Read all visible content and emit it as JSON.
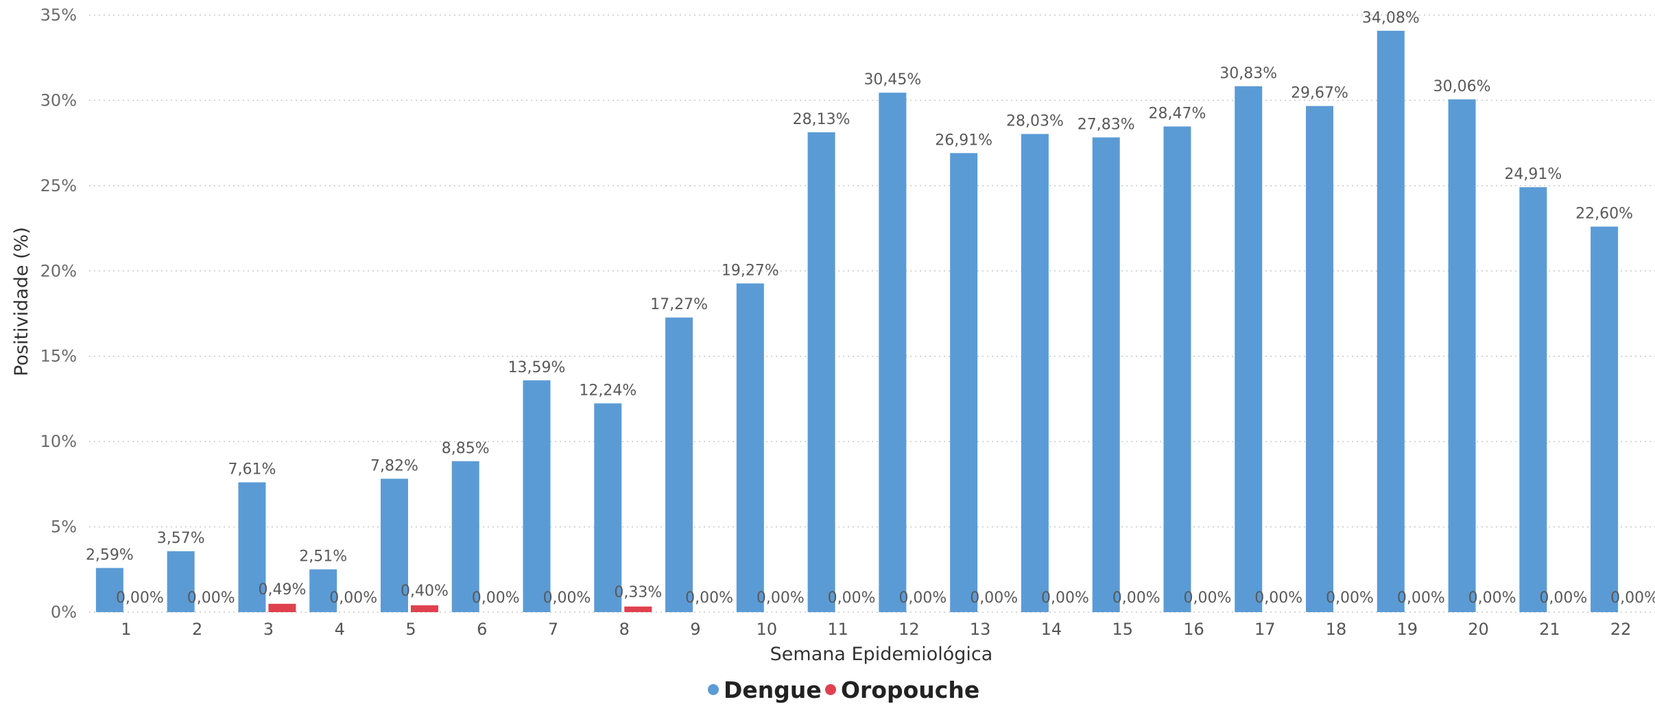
{
  "chart_data": {
    "type": "bar",
    "xlabel": "Semana Epidemiológica",
    "ylabel": "Positividade (%)",
    "ylim": [
      0,
      35
    ],
    "yticks": [
      "0%",
      "5%",
      "10%",
      "15%",
      "20%",
      "25%",
      "30%",
      "35%"
    ],
    "grid": "horizontal dotted",
    "legend": "bottom-center",
    "categories": [
      "1",
      "2",
      "3",
      "4",
      "5",
      "6",
      "7",
      "8",
      "9",
      "10",
      "11",
      "12",
      "13",
      "14",
      "15",
      "16",
      "17",
      "18",
      "19",
      "20",
      "21",
      "22"
    ],
    "series": [
      {
        "name": "Dengue",
        "color": "#5b9bd5",
        "values": [
          2.59,
          3.57,
          7.61,
          2.51,
          7.82,
          8.85,
          13.59,
          12.24,
          17.27,
          19.27,
          28.13,
          30.45,
          26.91,
          28.03,
          27.83,
          28.47,
          30.83,
          29.67,
          34.08,
          30.06,
          24.91,
          22.6
        ],
        "labels": [
          "2,59%",
          "3,57%",
          "7,61%",
          "2,51%",
          "7,82%",
          "8,85%",
          "13,59%",
          "12,24%",
          "17,27%",
          "19,27%",
          "28,13%",
          "30,45%",
          "26,91%",
          "28,03%",
          "27,83%",
          "28,47%",
          "30,83%",
          "29,67%",
          "34,08%",
          "30,06%",
          "24,91%",
          "22,60%"
        ]
      },
      {
        "name": "Oropouche",
        "color": "#e0414f",
        "values": [
          0,
          0,
          0.49,
          0,
          0.4,
          0,
          0,
          0.33,
          0,
          0,
          0,
          0,
          0,
          0,
          0,
          0,
          0,
          0,
          0,
          0,
          0,
          0
        ],
        "labels": [
          "0,00%",
          "0,00%",
          "0,49%",
          "0,00%",
          "0,40%",
          "0,00%",
          "0,00%",
          "0,33%",
          "0,00%",
          "0,00%",
          "0,00%",
          "0,00%",
          "0,00%",
          "0,00%",
          "0,00%",
          "0,00%",
          "0,00%",
          "0,00%",
          "0,00%",
          "0,00%",
          "0,00%",
          "0,00%"
        ]
      }
    ]
  }
}
